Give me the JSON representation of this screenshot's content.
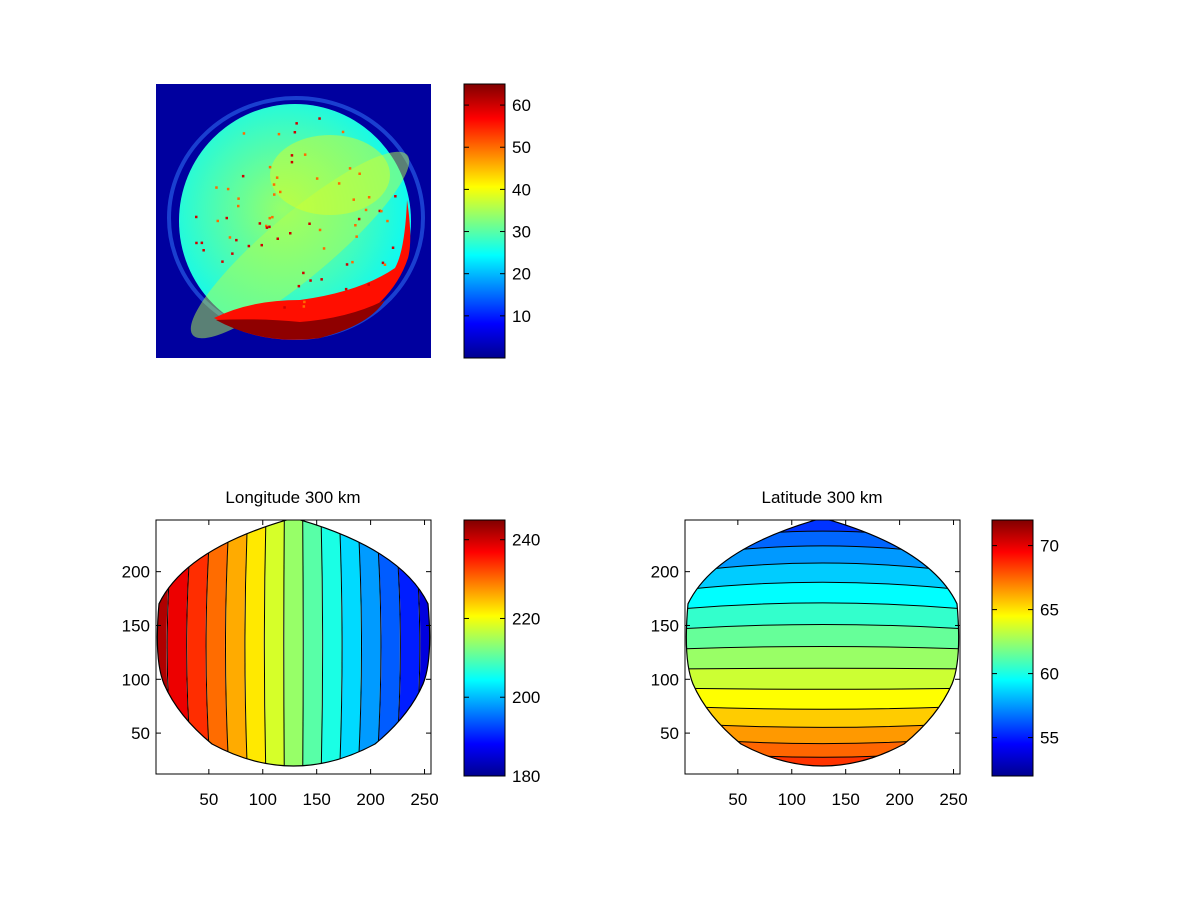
{
  "chart_data": [
    {
      "type": "heatmap",
      "title": "",
      "xlabel": "",
      "ylabel": "",
      "axes_visible": false,
      "colormap": "jet",
      "description_values": {
        "clim": [
          0,
          65
        ],
        "background_value": 2,
        "disk_typical_value": 30,
        "bright_edge_value": 64
      },
      "colorbar": {
        "ticks": [
          10,
          20,
          30,
          40,
          50,
          60
        ],
        "tick_labels": [
          "10",
          "20",
          "30",
          "40",
          "50",
          "60"
        ],
        "range": [
          0,
          65
        ]
      }
    },
    {
      "type": "heatmap",
      "subtype": "filled-contour",
      "title": "Longitude 300 km",
      "xlabel": "",
      "ylabel": "",
      "xlim": [
        1,
        256
      ],
      "ylim": [
        12,
        248
      ],
      "y_direction": "reverse",
      "colormap": "jet",
      "clim": [
        180,
        245
      ],
      "x_ticks": [
        50,
        100,
        150,
        200,
        250
      ],
      "x_tick_labels": [
        "50",
        "100",
        "150",
        "200",
        "250"
      ],
      "y_ticks": [
        50,
        100,
        150,
        200
      ],
      "y_tick_labels": [
        "50",
        "100",
        "150",
        "200"
      ],
      "contour_levels": [
        240,
        236,
        232,
        228,
        224,
        220,
        216,
        212,
        208,
        204,
        200,
        196,
        192,
        188,
        184
      ],
      "field": "longitude decreasing from ~244 at x=1 to ~184 at x=256",
      "colorbar": {
        "ticks": [
          180,
          200,
          220,
          240
        ],
        "tick_labels": [
          "180",
          "200",
          "220",
          "240"
        ],
        "range": [
          180,
          245
        ]
      }
    },
    {
      "type": "heatmap",
      "subtype": "filled-contour",
      "title": "Latitude 300 km",
      "xlabel": "",
      "ylabel": "",
      "xlim": [
        1,
        256
      ],
      "ylim": [
        12,
        248
      ],
      "y_direction": "reverse",
      "colormap": "jet",
      "clim": [
        52,
        72
      ],
      "x_ticks": [
        50,
        100,
        150,
        200,
        250
      ],
      "x_tick_labels": [
        "50",
        "100",
        "150",
        "200",
        "250"
      ],
      "y_ticks": [
        50,
        100,
        150,
        200
      ],
      "y_tick_labels": [
        "50",
        "100",
        "150",
        "200"
      ],
      "contour_levels": [
        53,
        54,
        55,
        56,
        57,
        58,
        59,
        60,
        61,
        62,
        63,
        64,
        65,
        66,
        67,
        68,
        69,
        70,
        71
      ],
      "field": "latitude decreasing from ~72 at y=12 (bottom) to ~53 at y=248 (top)",
      "colorbar": {
        "ticks": [
          55,
          60,
          65,
          70
        ],
        "tick_labels": [
          "55",
          "60",
          "65",
          "70"
        ],
        "range": [
          52,
          72
        ]
      }
    }
  ]
}
